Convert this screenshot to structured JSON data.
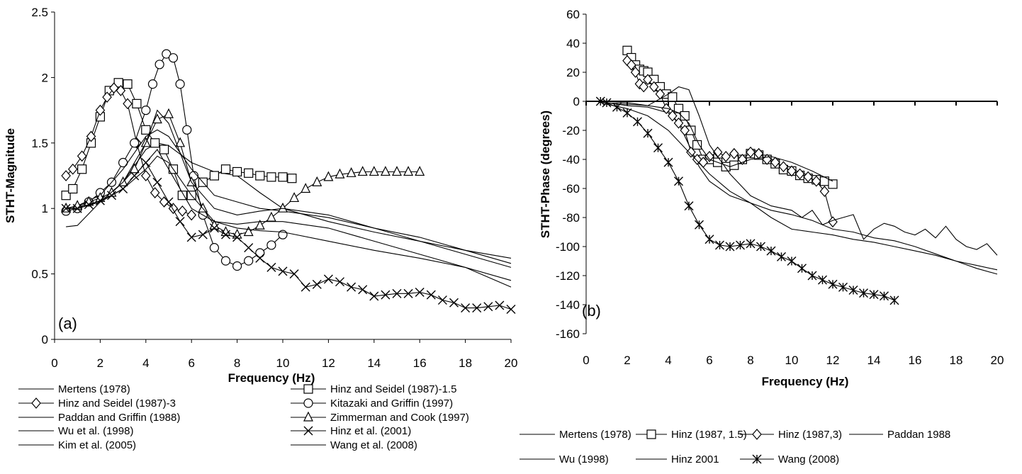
{
  "chart_data": [
    {
      "type": "line",
      "panel_label": "(a)",
      "xlabel": "Frequency (Hz)",
      "ylabel": "STHT-Magnitude",
      "xlim": [
        0,
        20
      ],
      "ylim": [
        0,
        2.5
      ],
      "xticks": [
        "0",
        "2",
        "4",
        "6",
        "8",
        "10",
        "12",
        "14",
        "16",
        "18",
        "20"
      ],
      "yticks": [
        "0",
        "0.5",
        "1",
        "1.5",
        "2",
        "2.5"
      ],
      "legend_position": "bottom",
      "series": [
        {
          "name": "Mertens (1978)",
          "marker": "none",
          "x": [
            0.5,
            1,
            2,
            3,
            4,
            4.5,
            5,
            6,
            7,
            8,
            9,
            10,
            12,
            14,
            16,
            18,
            20
          ],
          "y": [
            0.86,
            0.87,
            1.05,
            1.2,
            1.45,
            1.5,
            1.48,
            1.35,
            1.28,
            1.25,
            1.12,
            1.0,
            0.9,
            0.82,
            0.75,
            0.68,
            0.62
          ]
        },
        {
          "name": "Hinz and Seidel (1987)-1.5",
          "marker": "square",
          "x": [
            0.5,
            0.8,
            1.2,
            1.6,
            2.0,
            2.4,
            2.8,
            3.2,
            3.6,
            4.0,
            4.4,
            4.8,
            5.2,
            5.6,
            6.0,
            6.5,
            7.0,
            7.5,
            8.0,
            8.5,
            9.0,
            9.5,
            10.0,
            10.4
          ],
          "y": [
            1.1,
            1.15,
            1.3,
            1.5,
            1.7,
            1.9,
            1.96,
            1.95,
            1.8,
            1.6,
            1.5,
            1.45,
            1.3,
            1.1,
            1.1,
            1.2,
            1.25,
            1.3,
            1.28,
            1.27,
            1.25,
            1.24,
            1.24,
            1.23
          ]
        },
        {
          "name": "Hinz and Seidel (1987)-3",
          "marker": "diamond",
          "x": [
            0.5,
            0.8,
            1.2,
            1.6,
            2.0,
            2.3,
            2.6,
            2.9,
            3.2,
            3.6,
            4.0,
            4.4,
            4.8,
            5.2,
            5.6,
            6.0
          ],
          "y": [
            1.25,
            1.3,
            1.4,
            1.55,
            1.75,
            1.85,
            1.92,
            1.9,
            1.8,
            1.5,
            1.25,
            1.12,
            1.05,
            1.0,
            0.98,
            0.95
          ]
        },
        {
          "name": "Kitazaki and Griffin (1997)",
          "marker": "circle",
          "x": [
            0.5,
            1,
            1.5,
            2,
            2.5,
            3,
            3.5,
            4,
            4.3,
            4.6,
            4.9,
            5.2,
            5.5,
            5.8,
            6.1,
            6.5,
            7,
            7.5,
            8,
            8.5,
            9,
            9.5,
            10
          ],
          "y": [
            0.98,
            1.0,
            1.05,
            1.12,
            1.2,
            1.35,
            1.5,
            1.75,
            1.95,
            2.1,
            2.18,
            2.15,
            1.95,
            1.6,
            1.25,
            0.95,
            0.7,
            0.6,
            0.56,
            0.6,
            0.66,
            0.72,
            0.8
          ]
        },
        {
          "name": "Paddan and Griffin (1988)",
          "marker": "none",
          "x": [
            0.5,
            1,
            2,
            3,
            4,
            4.5,
            5,
            6,
            7,
            8,
            9,
            10,
            12,
            14,
            16,
            18,
            20
          ],
          "y": [
            1.0,
            1.02,
            1.1,
            1.3,
            1.55,
            1.6,
            1.55,
            1.3,
            1.1,
            1.05,
            1.0,
            0.98,
            0.93,
            0.85,
            0.78,
            0.68,
            0.58
          ]
        },
        {
          "name": "Zimmerman and Cook (1997)",
          "marker": "triangle",
          "x": [
            0.5,
            1,
            1.5,
            2,
            2.5,
            3,
            3.5,
            4,
            4.5,
            5,
            5.5,
            6,
            6.5,
            7,
            7.5,
            8,
            8.5,
            9,
            9.5,
            10,
            10.5,
            11,
            11.5,
            12,
            12.5,
            13,
            13.5,
            14,
            14.5,
            15,
            15.5,
            16
          ],
          "y": [
            1.0,
            1.02,
            1.05,
            1.08,
            1.12,
            1.2,
            1.3,
            1.5,
            1.68,
            1.72,
            1.5,
            1.2,
            1.0,
            0.87,
            0.82,
            0.8,
            0.82,
            0.87,
            0.93,
            1.0,
            1.08,
            1.15,
            1.2,
            1.24,
            1.26,
            1.27,
            1.28,
            1.28,
            1.28,
            1.28,
            1.28,
            1.28
          ]
        },
        {
          "name": "Wu et al. (1998)",
          "marker": "none",
          "x": [
            0.5,
            1,
            2,
            3,
            4,
            4.5,
            5,
            6,
            7,
            8,
            9,
            10,
            12,
            14,
            16,
            18,
            20
          ],
          "y": [
            1.0,
            1.0,
            1.05,
            1.2,
            1.5,
            1.75,
            1.65,
            1.2,
            1.0,
            0.95,
            0.98,
            1.0,
            0.95,
            0.85,
            0.75,
            0.65,
            0.55
          ]
        },
        {
          "name": "Hinz et al. (2001)",
          "marker": "x",
          "x": [
            0.5,
            1,
            1.5,
            2,
            2.5,
            3,
            3.5,
            4,
            4.5,
            5,
            5.5,
            6,
            6.5,
            7,
            7.5,
            8,
            8.5,
            9,
            9.5,
            10,
            10.5,
            11,
            11.5,
            12,
            12.5,
            13,
            13.5,
            14,
            14.5,
            15,
            15.5,
            16,
            16.5,
            17,
            17.5,
            18,
            18.5,
            19,
            19.5,
            20
          ],
          "y": [
            1.0,
            1.0,
            1.03,
            1.06,
            1.1,
            1.15,
            1.25,
            1.35,
            1.2,
            1.05,
            0.9,
            0.78,
            0.8,
            0.85,
            0.8,
            0.78,
            0.7,
            0.62,
            0.55,
            0.52,
            0.5,
            0.4,
            0.42,
            0.46,
            0.44,
            0.4,
            0.38,
            0.33,
            0.34,
            0.35,
            0.35,
            0.36,
            0.34,
            0.3,
            0.28,
            0.24,
            0.24,
            0.25,
            0.26,
            0.23
          ]
        },
        {
          "name": "Kim et al. (2005)",
          "marker": "none",
          "x": [
            0.5,
            1,
            2,
            3,
            4,
            4.5,
            5,
            6,
            7,
            8,
            9,
            10,
            12,
            14,
            16,
            18,
            20
          ],
          "y": [
            1.0,
            1.0,
            1.05,
            1.15,
            1.35,
            1.45,
            1.3,
            1.0,
            0.9,
            0.88,
            0.9,
            0.9,
            0.85,
            0.75,
            0.65,
            0.55,
            0.45
          ]
        },
        {
          "name": "Wang et al. (2008)",
          "marker": "none",
          "x": [
            0.5,
            1,
            2,
            3,
            4,
            4.5,
            5,
            6,
            7,
            8,
            9,
            10,
            12,
            14,
            16,
            18,
            20
          ],
          "y": [
            1.0,
            1.0,
            1.05,
            1.15,
            1.3,
            1.4,
            1.35,
            1.1,
            0.9,
            0.85,
            0.83,
            0.82,
            0.75,
            0.68,
            0.62,
            0.55,
            0.4
          ]
        }
      ]
    },
    {
      "type": "line",
      "panel_label": "(b)",
      "xlabel": "Frequency (Hz)",
      "ylabel": "STHT-Phase (degrees)",
      "xlim": [
        0,
        20
      ],
      "ylim": [
        -160,
        60
      ],
      "xticks": [
        "0",
        "2",
        "4",
        "6",
        "8",
        "10",
        "12",
        "14",
        "16",
        "18",
        "20"
      ],
      "yticks": [
        "-160",
        "-140",
        "-120",
        "-100",
        "-80",
        "-60",
        "-40",
        "-20",
        "0",
        "20",
        "40",
        "60"
      ],
      "legend_position": "bottom",
      "series": [
        {
          "name": "Mertens (1978)",
          "marker": "none",
          "x": [
            0.5,
            1,
            2,
            3,
            4,
            4.5,
            5,
            5.5,
            6,
            7,
            8,
            9,
            10,
            11,
            12,
            13,
            14,
            15,
            16,
            17,
            18,
            19,
            20
          ],
          "y": [
            0,
            -1,
            -3,
            -4,
            -8,
            -15,
            -30,
            -45,
            -55,
            -65,
            -70,
            -75,
            -78,
            -82,
            -88,
            -90,
            -94,
            -96,
            -100,
            -105,
            -110,
            -115,
            -119
          ]
        },
        {
          "name": "Hinz (1987, 1.5)",
          "marker": "square",
          "x": [
            2,
            2.2,
            2.4,
            2.6,
            2.8,
            3.0,
            3.3,
            3.6,
            3.9,
            4.2,
            4.5,
            4.8,
            5.1,
            5.4,
            5.7,
            6.0,
            6.4,
            6.8,
            7.2,
            7.6,
            8.0,
            8.4,
            8.8,
            9.2,
            9.6,
            10.0,
            10.4,
            10.8,
            11.2,
            11.6,
            12.0
          ],
          "y": [
            35,
            30,
            25,
            22,
            21,
            20,
            15,
            10,
            5,
            3,
            -5,
            -10,
            -20,
            -30,
            -40,
            -40,
            -42,
            -45,
            -44,
            -40,
            -36,
            -37,
            -40,
            -43,
            -47,
            -48,
            -51,
            -53,
            -54,
            -55,
            -57
          ]
        },
        {
          "name": "Hinz (1987,3)",
          "marker": "diamond",
          "x": [
            2,
            2.2,
            2.4,
            2.6,
            2.8,
            3.0,
            3.3,
            3.6,
            3.9,
            4.2,
            4.5,
            4.8,
            5.1,
            5.4,
            5.7,
            6.0,
            6.4,
            6.8,
            7.2,
            7.6,
            8.0,
            8.4,
            8.8,
            9.2,
            9.6,
            10.0,
            10.4,
            10.8,
            11.2,
            11.6,
            12.0
          ],
          "y": [
            28,
            25,
            20,
            12,
            10,
            15,
            10,
            5,
            -5,
            -10,
            -15,
            -20,
            -35,
            -40,
            -42,
            -38,
            -35,
            -38,
            -36,
            -40,
            -35,
            -36,
            -40,
            -42,
            -45,
            -48,
            -50,
            -52,
            -55,
            -62,
            -83
          ]
        },
        {
          "name": "Paddan 1988",
          "marker": "none",
          "x": [
            0.5,
            1,
            2,
            3,
            4,
            4.5,
            5,
            5.5,
            6,
            7,
            8,
            9,
            10,
            11,
            12
          ],
          "y": [
            0,
            -1,
            -2,
            -3,
            -5,
            -8,
            -15,
            -30,
            -40,
            -45,
            -40,
            -38,
            -42,
            -48,
            -55
          ]
        },
        {
          "name": "Wu (1998)",
          "marker": "none",
          "x": [
            0.5,
            1,
            2,
            3,
            4,
            5,
            6,
            7,
            8,
            9,
            10,
            11,
            12,
            13,
            14,
            15,
            16,
            17,
            18,
            19,
            20
          ],
          "y": [
            0,
            -2,
            -5,
            -10,
            -20,
            -35,
            -50,
            -62,
            -70,
            -80,
            -88,
            -90,
            -92,
            -95,
            -97,
            -100,
            -103,
            -106,
            -110,
            -113,
            -116
          ]
        },
        {
          "name": "Hinz 2001",
          "marker": "none",
          "x": [
            0.5,
            1,
            2,
            3,
            4,
            4.5,
            5,
            5.5,
            6,
            7,
            8,
            9,
            10,
            10.5,
            11,
            11.5,
            12,
            12.5,
            13,
            13.5,
            14,
            14.5,
            15,
            15.5,
            16,
            16.5,
            17,
            17.5,
            18,
            18.5,
            19,
            19.5,
            20
          ],
          "y": [
            0,
            0,
            -1,
            -3,
            5,
            10,
            8,
            -10,
            -30,
            -50,
            -65,
            -72,
            -75,
            -80,
            -75,
            -85,
            -82,
            -80,
            -78,
            -95,
            -88,
            -84,
            -86,
            -90,
            -92,
            -88,
            -94,
            -86,
            -95,
            -100,
            -102,
            -98,
            -106
          ]
        },
        {
          "name": "Wang (2008)",
          "marker": "asterisk",
          "x": [
            0.7,
            1,
            1.5,
            2,
            2.5,
            3,
            3.5,
            4,
            4.5,
            5,
            5.5,
            6,
            6.5,
            7,
            7.5,
            8,
            8.5,
            9,
            9.5,
            10,
            10.5,
            11,
            11.5,
            12,
            12.5,
            13,
            13.5,
            14,
            14.5,
            15
          ],
          "y": [
            0,
            -1,
            -4,
            -8,
            -14,
            -22,
            -32,
            -42,
            -55,
            -72,
            -85,
            -95,
            -99,
            -100,
            -99,
            -98,
            -100,
            -103,
            -107,
            -110,
            -115,
            -120,
            -123,
            -126,
            -128,
            -130,
            -132,
            -133,
            -134,
            -137
          ]
        }
      ]
    }
  ]
}
